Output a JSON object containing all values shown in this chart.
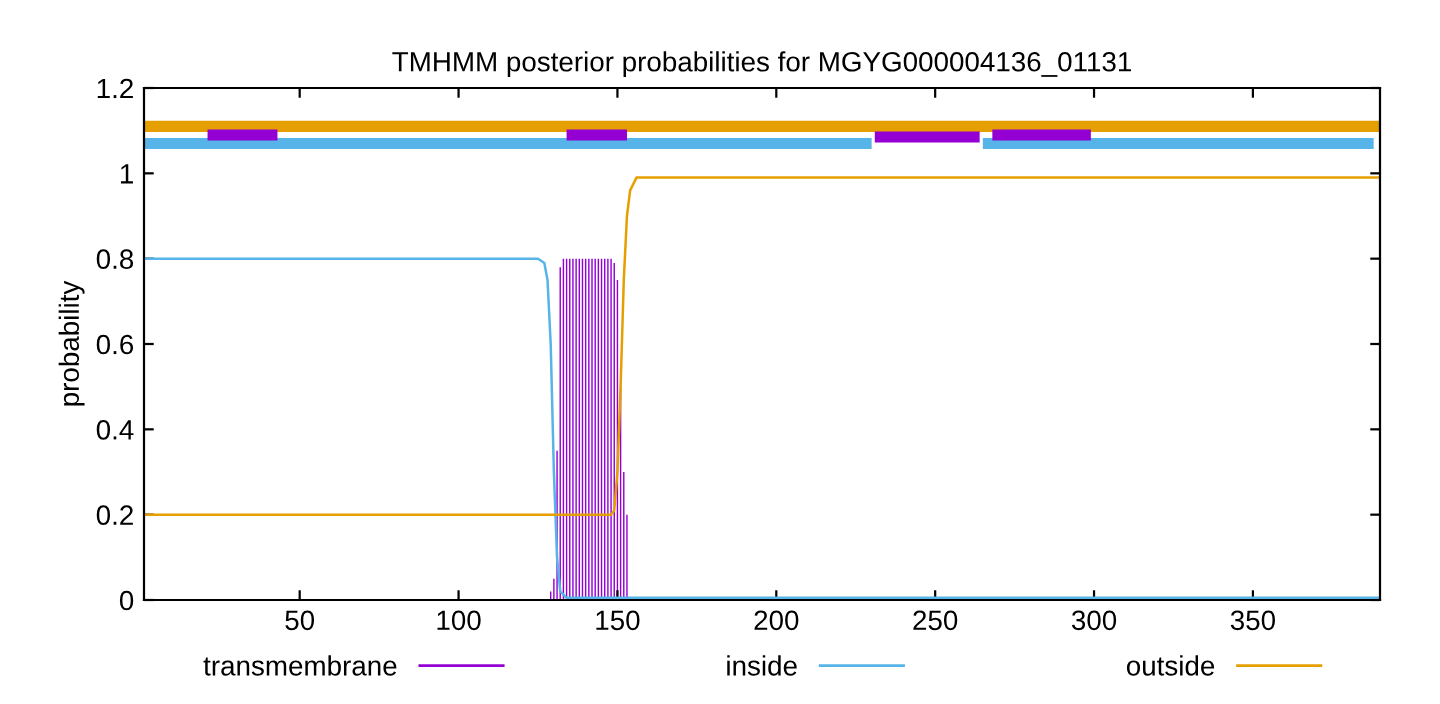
{
  "chart_data": {
    "type": "line",
    "title": "TMHMM posterior probabilities for MGYG000004136_01131",
    "ylabel": "probability",
    "xlim": [
      1,
      390
    ],
    "xticks": [
      50,
      100,
      150,
      200,
      250,
      300,
      350
    ],
    "ylim": [
      0,
      1.2
    ],
    "yticks": [
      0,
      0.2,
      0.4,
      0.6,
      0.8,
      1,
      1.2
    ],
    "grid": false,
    "legend": "bottom",
    "series": [
      {
        "name": "transmembrane",
        "type": "bar",
        "color": "#9400d3",
        "x": [
          129,
          130,
          131,
          132,
          133,
          134,
          135,
          136,
          137,
          138,
          139,
          140,
          141,
          142,
          143,
          144,
          145,
          146,
          147,
          148,
          149,
          150,
          151,
          152,
          153
        ],
        "values": [
          0.02,
          0.05,
          0.35,
          0.78,
          0.8,
          0.8,
          0.8,
          0.8,
          0.8,
          0.8,
          0.8,
          0.8,
          0.8,
          0.8,
          0.8,
          0.8,
          0.8,
          0.8,
          0.8,
          0.8,
          0.79,
          0.75,
          0.5,
          0.3,
          0.2
        ]
      },
      {
        "name": "inside",
        "color": "#56b4e9",
        "x": [
          1,
          125,
          127,
          128,
          129,
          130,
          131,
          132,
          134,
          390
        ],
        "values": [
          0.8,
          0.8,
          0.79,
          0.75,
          0.6,
          0.3,
          0.1,
          0.02,
          0.005,
          0.005
        ]
      },
      {
        "name": "outside",
        "color": "#e69f00",
        "x": [
          1,
          148,
          149,
          150,
          151,
          152,
          153,
          154,
          156,
          390
        ],
        "values": [
          0.2,
          0.2,
          0.21,
          0.3,
          0.5,
          0.75,
          0.9,
          0.96,
          0.99,
          0.99
        ]
      },
      {
        "color": "#56b4e9",
        "x": [
          1,
          230,
          231,
          265,
          388
        ],
        "values": [
          1.07,
          1.07,
          null,
          1.07,
          1.07
        ]
      },
      {
        "color": "#e69f00",
        "x": [
          1,
          390
        ],
        "values": [
          1.11,
          1.11
        ]
      },
      {
        "color": "#9400d3",
        "x": [
          21,
          43,
          44,
          134,
          153,
          154,
          231,
          264,
          265,
          268,
          299
        ],
        "values": [
          1.09,
          1.09,
          null,
          1.09,
          1.09,
          null,
          1.085,
          1.085,
          null,
          1.09,
          1.09
        ]
      }
    ]
  }
}
